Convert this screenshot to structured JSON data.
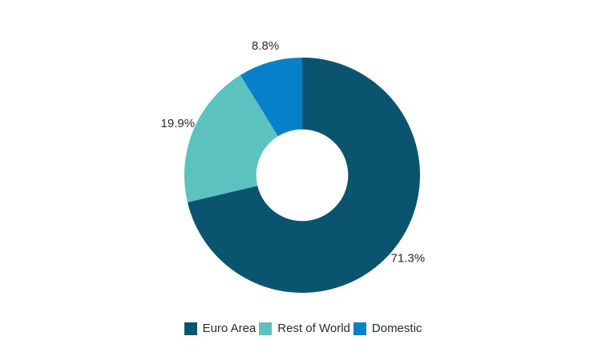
{
  "chart_data": {
    "type": "pie",
    "subtype": "donut",
    "title": "",
    "series": [
      {
        "label": "Euro Area",
        "value": 71.3,
        "display": "71.3%",
        "color": "#0b5470"
      },
      {
        "label": "Rest of World",
        "value": 19.9,
        "display": "19.9%",
        "color": "#5bc2bf"
      },
      {
        "label": "Domestic",
        "value": 8.8,
        "display": "8.8%",
        "color": "#0680c8"
      }
    ],
    "start_angle_deg": 0,
    "direction": "clockwise",
    "inner_radius_ratio": 0.39,
    "data_labels": "outside, percentage",
    "legend_position": "bottom-center",
    "background_color": "#ffffff",
    "label_text_color": "#2b2b2b"
  }
}
